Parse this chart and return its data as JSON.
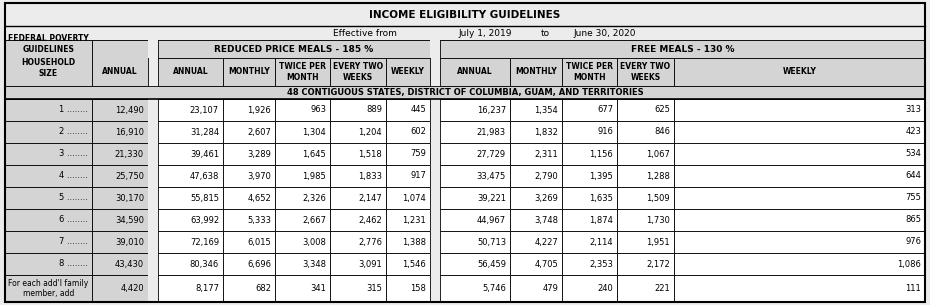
{
  "title1": "INCOME ELIGIBILITY GUIDELINES",
  "title2_left": "Effective from",
  "title2_mid": "July 1, 2019",
  "title2_to": "to",
  "title2_right": "June 30, 2020",
  "header_reduced": "REDUCED PRICE MEALS - 185 %",
  "header_free": "FREE MEALS - 130 %",
  "header_annual": "ANNUAL",
  "header_monthly": "MONTHLY",
  "header_twice": "TWICE PER\nMONTH",
  "header_every2": "EVERY TWO\nWEEKS",
  "header_weekly": "WEEKLY",
  "section_label": "48 CONTIGUOUS STATES, DISTRICT OF COLUMBIA, GUAM, AND TERRITORIES",
  "rows": [
    {
      "size": "1 ........",
      "fed": "12,490",
      "ra": "23,107",
      "rm": "1,926",
      "rt": "963",
      "re": "889",
      "rw": "445",
      "fa": "16,237",
      "fm": "1,354",
      "ft": "677",
      "fe": "625",
      "fw": "313"
    },
    {
      "size": "2 ........",
      "fed": "16,910",
      "ra": "31,284",
      "rm": "2,607",
      "rt": "1,304",
      "re": "1,204",
      "rw": "602",
      "fa": "21,983",
      "fm": "1,832",
      "ft": "916",
      "fe": "846",
      "fw": "423"
    },
    {
      "size": "3 ........",
      "fed": "21,330",
      "ra": "39,461",
      "rm": "3,289",
      "rt": "1,645",
      "re": "1,518",
      "rw": "759",
      "fa": "27,729",
      "fm": "2,311",
      "ft": "1,156",
      "fe": "1,067",
      "fw": "534"
    },
    {
      "size": "4 ........",
      "fed": "25,750",
      "ra": "47,638",
      "rm": "3,970",
      "rt": "1,985",
      "re": "1,833",
      "rw": "917",
      "fa": "33,475",
      "fm": "2,790",
      "ft": "1,395",
      "fe": "1,288",
      "fw": "644"
    },
    {
      "size": "5 ........",
      "fed": "30,170",
      "ra": "55,815",
      "rm": "4,652",
      "rt": "2,326",
      "re": "2,147",
      "rw": "1,074",
      "fa": "39,221",
      "fm": "3,269",
      "ft": "1,635",
      "fe": "1,509",
      "fw": "755"
    },
    {
      "size": "6 ........",
      "fed": "34,590",
      "ra": "63,992",
      "rm": "5,333",
      "rt": "2,667",
      "re": "2,462",
      "rw": "1,231",
      "fa": "44,967",
      "fm": "3,748",
      "ft": "1,874",
      "fe": "1,730",
      "fw": "865"
    },
    {
      "size": "7 ........",
      "fed": "39,010",
      "ra": "72,169",
      "rm": "6,015",
      "rt": "3,008",
      "re": "2,776",
      "rw": "1,388",
      "fa": "50,713",
      "fm": "4,227",
      "ft": "2,114",
      "fe": "1,951",
      "fw": "976"
    },
    {
      "size": "8 ........",
      "fed": "43,430",
      "ra": "80,346",
      "rm": "6,696",
      "rt": "3,348",
      "re": "3,091",
      "rw": "1,546",
      "fa": "56,459",
      "fm": "4,705",
      "ft": "2,353",
      "fe": "2,172",
      "fw": "1,086"
    },
    {
      "size": "For each add'l family\nmember, add",
      "fed": "4,420",
      "ra": "8,177",
      "rm": "682",
      "rt": "341",
      "re": "315",
      "rw": "158",
      "fa": "5,746",
      "fm": "479",
      "ft": "240",
      "fe": "221",
      "fw": "111"
    }
  ],
  "bg_color": "#ececec",
  "header_bg": "#d4d4d4",
  "white": "#ffffff",
  "border_color": "#000000"
}
